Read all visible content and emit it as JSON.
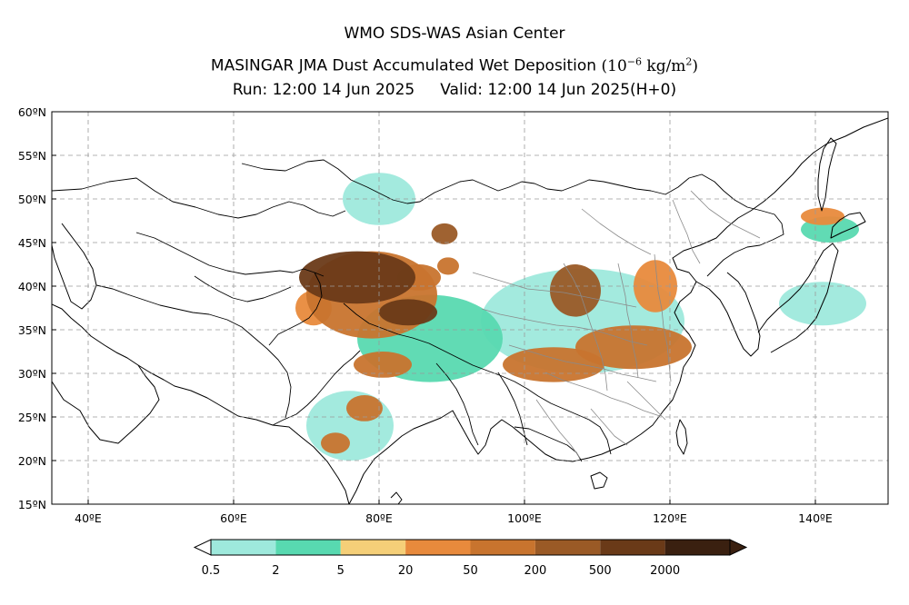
{
  "title": {
    "line1": "WMO SDS-WAS Asian Center",
    "line2_main": "MASINGAR JMA Dust Accumulated Wet Deposition",
    "line2_unit_open": "(10",
    "line2_unit_exp": "−6",
    "line2_unit_mid": " kg/m",
    "line2_unit_sq": "2",
    "line2_unit_close": ")",
    "run_label": "Run: 12:00 14 Jun 2025",
    "valid_label": "Valid: 12:00 14 Jun 2025(H+0)"
  },
  "map": {
    "lon_range": [
      35,
      150
    ],
    "lat_range": [
      15,
      60
    ],
    "lon_ticks": [
      {
        "value": 40,
        "label": "40ºE"
      },
      {
        "value": 60,
        "label": "60ºE"
      },
      {
        "value": 80,
        "label": "80ºE"
      },
      {
        "value": 100,
        "label": "100ºE"
      },
      {
        "value": 120,
        "label": "120ºE"
      },
      {
        "value": 140,
        "label": "140ºE"
      }
    ],
    "lat_ticks": [
      {
        "value": 15,
        "label": "15ºN"
      },
      {
        "value": 20,
        "label": "20ºN"
      },
      {
        "value": 25,
        "label": "25ºN"
      },
      {
        "value": 30,
        "label": "30ºN"
      },
      {
        "value": 35,
        "label": "35ºN"
      },
      {
        "value": 40,
        "label": "40ºN"
      },
      {
        "value": 45,
        "label": "45ºN"
      },
      {
        "value": 50,
        "label": "50ºN"
      },
      {
        "value": 55,
        "label": "55ºN"
      },
      {
        "value": 60,
        "label": "60ºN"
      }
    ],
    "grid": "dashed",
    "colors": {
      "frame": "#000000",
      "grid": "#9a9a9a",
      "coast": "#000000",
      "china_provinces": "#8a8a8a"
    }
  },
  "colorbar": {
    "levels": [
      "0.5",
      "2",
      "5",
      "20",
      "50",
      "200",
      "500",
      "2000"
    ],
    "colors": [
      "#9ee9dc",
      "#58d9b0",
      "#f5cf78",
      "#e88a3c",
      "#c8742e",
      "#9a5a26",
      "#6a3a18",
      "#3a2010"
    ],
    "extend": "both"
  },
  "chart_data": {
    "type": "heatmap",
    "variable": "Dust Accumulated Wet Deposition",
    "units": "10^-6 kg/m^2",
    "levels": [
      0.5,
      2,
      5,
      20,
      50,
      200,
      500,
      2000
    ],
    "regions": [
      {
        "lon": 77,
        "lat": 41,
        "rx": 8,
        "ry": 3,
        "level": 500
      },
      {
        "lon": 84,
        "lat": 37,
        "rx": 4,
        "ry": 1.5,
        "level": 500
      },
      {
        "lon": 79,
        "lat": 39,
        "rx": 9,
        "ry": 5,
        "level": 50
      },
      {
        "lon": 85.5,
        "lat": 41,
        "rx": 3,
        "ry": 1.5,
        "level": 50
      },
      {
        "lon": 89,
        "lat": 46,
        "rx": 1.8,
        "ry": 1.2,
        "level": 200
      },
      {
        "lon": 89.5,
        "lat": 42.3,
        "rx": 1.5,
        "ry": 1,
        "level": 50
      },
      {
        "lon": 107,
        "lat": 39.5,
        "rx": 3.5,
        "ry": 3,
        "level": 200
      },
      {
        "lon": 115,
        "lat": 33,
        "rx": 8,
        "ry": 2.5,
        "level": 50
      },
      {
        "lon": 104,
        "lat": 31,
        "rx": 7,
        "ry": 2,
        "level": 50
      },
      {
        "lon": 80.5,
        "lat": 31,
        "rx": 4,
        "ry": 1.5,
        "level": 50
      },
      {
        "lon": 78,
        "lat": 26,
        "rx": 2.5,
        "ry": 1.5,
        "level": 50
      },
      {
        "lon": 74,
        "lat": 22,
        "rx": 2,
        "ry": 1.2,
        "level": 50
      },
      {
        "lon": 118,
        "lat": 40,
        "rx": 3,
        "ry": 3,
        "level": 20
      },
      {
        "lon": 141,
        "lat": 48,
        "rx": 3,
        "ry": 1,
        "level": 20
      },
      {
        "lon": 142,
        "lat": 46.5,
        "rx": 4,
        "ry": 1.5,
        "level": 2
      },
      {
        "lon": 141,
        "lat": 38,
        "rx": 6,
        "ry": 2.5,
        "level": 0.5
      },
      {
        "lon": 108,
        "lat": 36,
        "rx": 14,
        "ry": 6,
        "level": 0.5
      },
      {
        "lon": 87,
        "lat": 34,
        "rx": 10,
        "ry": 5,
        "level": 2
      },
      {
        "lon": 76,
        "lat": 24,
        "rx": 6,
        "ry": 4,
        "level": 0.5
      },
      {
        "lon": 80,
        "lat": 50,
        "rx": 5,
        "ry": 3,
        "level": 0.5
      },
      {
        "lon": 71,
        "lat": 37.5,
        "rx": 2.5,
        "ry": 2,
        "level": 20
      }
    ]
  }
}
